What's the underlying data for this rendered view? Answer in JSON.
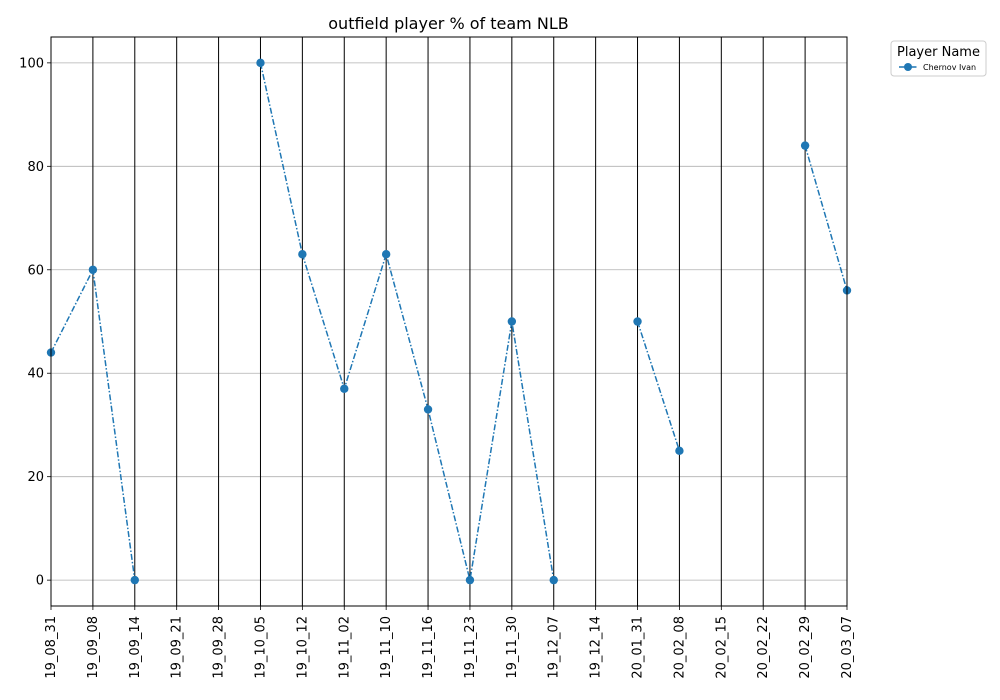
{
  "chart_data": {
    "type": "line",
    "title": "outfield player % of team NLB",
    "xlabel": "",
    "ylabel": "",
    "categories": [
      "19_08_31",
      "19_09_08",
      "19_09_14",
      "19_09_21",
      "19_09_28",
      "19_10_05",
      "19_10_12",
      "19_11_02",
      "19_11_10",
      "19_11_16",
      "19_11_23",
      "19_11_30",
      "19_12_07",
      "19_12_14",
      "20_01_31",
      "20_02_08",
      "20_02_15",
      "20_02_22",
      "20_02_29",
      "20_03_07"
    ],
    "series": [
      {
        "name": "Chernov Ivan",
        "color": "#1f77b4",
        "line_style": "dash-dot",
        "marker": "circle",
        "values": [
          44,
          60,
          0,
          null,
          null,
          100,
          63,
          37,
          63,
          33,
          0,
          50,
          0,
          null,
          50,
          25,
          null,
          null,
          84,
          56
        ]
      }
    ],
    "ylim": [
      -5,
      105
    ],
    "yticks": [
      0,
      20,
      40,
      60,
      80,
      100
    ],
    "grid_y": true,
    "vertical_lines_at_categories": true,
    "legend": {
      "title": "Player Name",
      "placement": "outside-top-right"
    }
  }
}
